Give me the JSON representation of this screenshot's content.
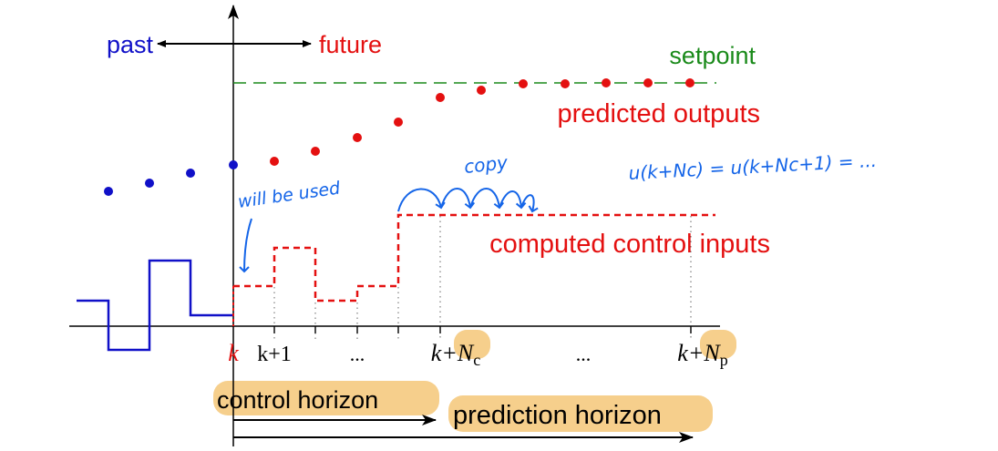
{
  "labels": {
    "past": "past",
    "future": "future",
    "setpoint": "setpoint",
    "predicted_outputs": "predicted outputs",
    "computed_control_inputs": "computed control inputs",
    "control_horizon": "control horizon",
    "prediction_horizon": "prediction horizon"
  },
  "ticks": {
    "k": "k",
    "k_plus_1": "k+1",
    "dots_1": "...",
    "k_plus_Nc_prefix": "k+",
    "Nc_N": "N",
    "Nc_sub": "c",
    "dots_2": "...",
    "k_plus_Np_prefix": "k+",
    "Np_N": "N",
    "Np_sub": "p"
  },
  "annotations": {
    "will_be_used": "will be used",
    "copy": "copy",
    "equation": "u(k+Nc) = u(k+Nc+1) = ..."
  },
  "colors": {
    "past": "#1010c8",
    "future": "#e41010",
    "setpoint": "#1a8a1a",
    "handwriting": "#1565e8",
    "highlight": "#f6cf8c",
    "axis": "#000000"
  }
}
